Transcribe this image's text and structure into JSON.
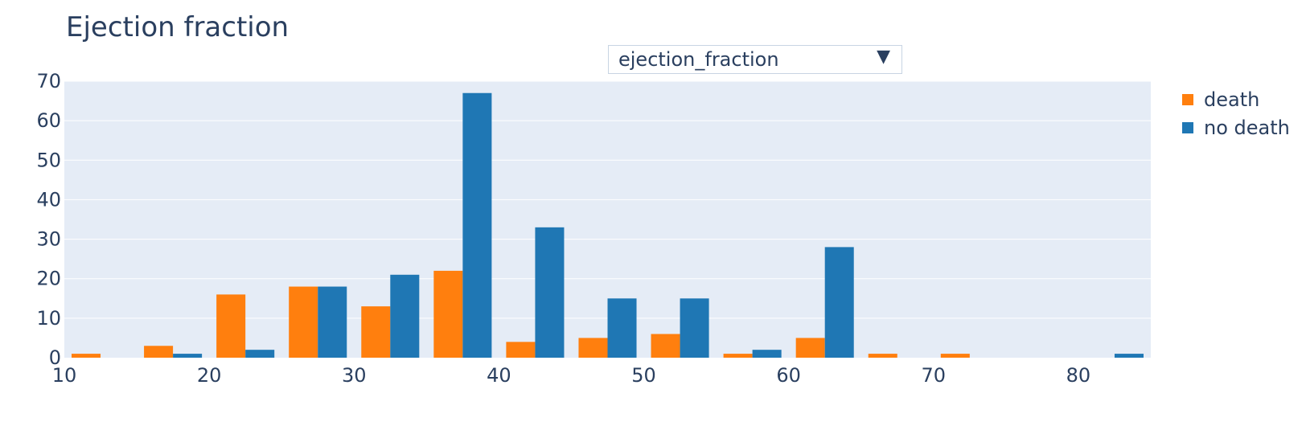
{
  "chart_data": {
    "type": "bar",
    "title": "Ejection fraction",
    "xlabel": "",
    "ylabel": "",
    "xlim": [
      10,
      85
    ],
    "ylim": [
      0,
      70
    ],
    "x_ticks": [
      10,
      20,
      30,
      40,
      50,
      60,
      70,
      80
    ],
    "y_ticks": [
      0,
      10,
      20,
      30,
      40,
      50,
      60,
      70
    ],
    "bin_width": 5,
    "bins": [
      10,
      15,
      20,
      25,
      30,
      35,
      40,
      45,
      50,
      55,
      60,
      65,
      70,
      75,
      80
    ],
    "grid": true,
    "legend_position": "top-right",
    "series": [
      {
        "name": "death",
        "color": "#ff7f0e",
        "values": [
          1,
          3,
          16,
          18,
          13,
          22,
          4,
          5,
          6,
          1,
          5,
          1,
          1,
          0,
          0
        ]
      },
      {
        "name": "no death",
        "color": "#1f77b4",
        "values": [
          0,
          1,
          2,
          18,
          21,
          67,
          33,
          15,
          15,
          2,
          28,
          0,
          0,
          0,
          1
        ]
      }
    ]
  },
  "dropdown": {
    "selected": "ejection_fraction",
    "arrow": "▼"
  }
}
